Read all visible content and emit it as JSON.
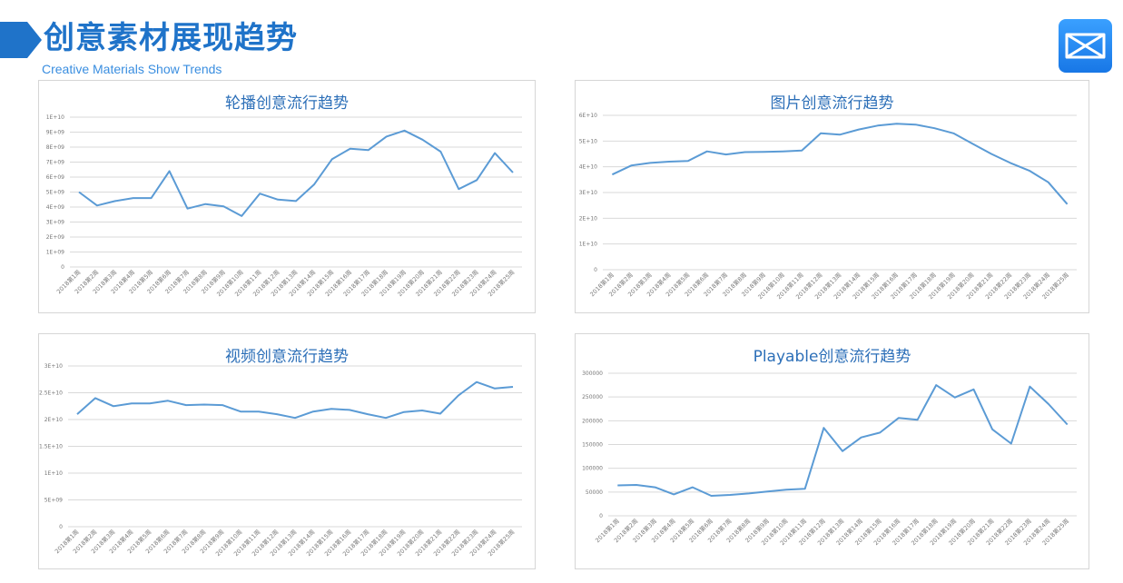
{
  "header": {
    "title": "创意素材展现趋势",
    "subtitle": "Creative Materials Show Trends"
  },
  "colors": {
    "accent": "#1f73c9",
    "line": "#5b9bd5",
    "grid": "#d9d9d9"
  },
  "logo": {
    "icon": "bowtie-logo-icon"
  },
  "chart_data": [
    {
      "id": "carousel",
      "type": "line",
      "title": "轮播创意流行趋势",
      "ylim": [
        0,
        10000000000
      ],
      "yticks": [
        "0",
        "1E+09",
        "2E+09",
        "3E+09",
        "4E+09",
        "5E+09",
        "6E+09",
        "7E+09",
        "8E+09",
        "9E+09",
        "1E+10"
      ],
      "categories": [
        "2018第1周",
        "2018第2周",
        "2018第3周",
        "2018第4周",
        "2018第5周",
        "2018第6周",
        "2018第7周",
        "2018第8周",
        "2018第9周",
        "2018第10周",
        "2018第11周",
        "2018第12周",
        "2018第13周",
        "2018第14周",
        "2018第15周",
        "2018第16周",
        "2018第17周",
        "2018第18周",
        "2018第19周",
        "2018第20周",
        "2018第21周",
        "2018第22周",
        "2018第23周",
        "2018第24周",
        "2018第25周"
      ],
      "values": [
        5000000000,
        4100000000,
        4400000000,
        4600000000,
        4600000000,
        6400000000,
        3900000000,
        4200000000,
        4050000000,
        3400000000,
        4900000000,
        4500000000,
        4400000000,
        5500000000,
        7200000000,
        7900000000,
        7800000000,
        8700000000,
        9100000000,
        8500000000,
        7700000000,
        5200000000,
        5800000000,
        7600000000,
        6300000000
      ]
    },
    {
      "id": "image",
      "type": "line",
      "title": "图片创意流行趋势",
      "ylim": [
        0,
        60000000000
      ],
      "yticks": [
        "0",
        "1E+10",
        "2E+10",
        "3E+10",
        "4E+10",
        "5E+10",
        "6E+10"
      ],
      "categories": [
        "2018第1周",
        "2018第2周",
        "2018第3周",
        "2018第4周",
        "2018第5周",
        "2018第6周",
        "2018第7周",
        "2018第8周",
        "2018第9周",
        "2018第10周",
        "2018第11周",
        "2018第12周",
        "2018第13周",
        "2018第14周",
        "2018第15周",
        "2018第16周",
        "2018第17周",
        "2018第18周",
        "2018第19周",
        "2018第20周",
        "2018第21周",
        "2018第22周",
        "2018第23周",
        "2018第24周",
        "2018第25周"
      ],
      "values": [
        37000000000,
        40500000000,
        41500000000,
        42000000000,
        42300000000,
        46000000000,
        44800000000,
        45700000000,
        45800000000,
        46000000000,
        46300000000,
        53000000000,
        52500000000,
        54500000000,
        56000000000,
        56700000000,
        56400000000,
        55000000000,
        53000000000,
        49000000000,
        45000000000,
        41500000000,
        38500000000,
        34000000000,
        25500000000
      ]
    },
    {
      "id": "video",
      "type": "line",
      "title": "视频创意流行趋势",
      "ylim": [
        0,
        30000000000
      ],
      "yticks": [
        "0",
        "5E+09",
        "1E+10",
        "1.5E+10",
        "2E+10",
        "2.5E+10",
        "3E+10"
      ],
      "categories": [
        "2018第1周",
        "2018第2周",
        "2018第3周",
        "2018第4周",
        "2018第5周",
        "2018第6周",
        "2018第7周",
        "2018第8周",
        "2018第9周",
        "2018第10周",
        "2018第11周",
        "2018第12周",
        "2018第13周",
        "2018第14周",
        "2018第15周",
        "2018第16周",
        "2018第17周",
        "2018第18周",
        "2018第19周",
        "2018第20周",
        "2018第21周",
        "2018第22周",
        "2018第23周",
        "2018第24周",
        "2018第25周"
      ],
      "values": [
        21000000000,
        24000000000,
        22500000000,
        23000000000,
        23000000000,
        23500000000,
        22700000000,
        22800000000,
        22700000000,
        21500000000,
        21500000000,
        21000000000,
        20300000000,
        21500000000,
        22000000000,
        21800000000,
        21000000000,
        20300000000,
        21400000000,
        21700000000,
        21100000000,
        24500000000,
        27000000000,
        25800000000,
        26100000000
      ]
    },
    {
      "id": "playable",
      "type": "line",
      "title": "Playable创意流行趋势",
      "ylim": [
        0,
        300000
      ],
      "yticks": [
        "0",
        "50000",
        "100000",
        "150000",
        "200000",
        "250000",
        "300000"
      ],
      "categories": [
        "2018第1周",
        "2018第2周",
        "2018第3周",
        "2018第4周",
        "2018第5周",
        "2018第6周",
        "2018第7周",
        "2018第8周",
        "2018第9周",
        "2018第10周",
        "2018第11周",
        "2018第12周",
        "2018第13周",
        "2018第14周",
        "2018第15周",
        "2018第16周",
        "2018第17周",
        "2018第18周",
        "2018第19周",
        "2018第20周",
        "2018第21周",
        "2018第22周",
        "2018第23周",
        "2018第24周",
        "2018第25周"
      ],
      "values": [
        64000,
        65000,
        60000,
        45000,
        60000,
        42000,
        44000,
        47000,
        51000,
        55000,
        57000,
        185000,
        136000,
        165000,
        175000,
        206000,
        202000,
        275000,
        249000,
        266000,
        182000,
        152000,
        272000,
        235000,
        192000
      ]
    }
  ]
}
